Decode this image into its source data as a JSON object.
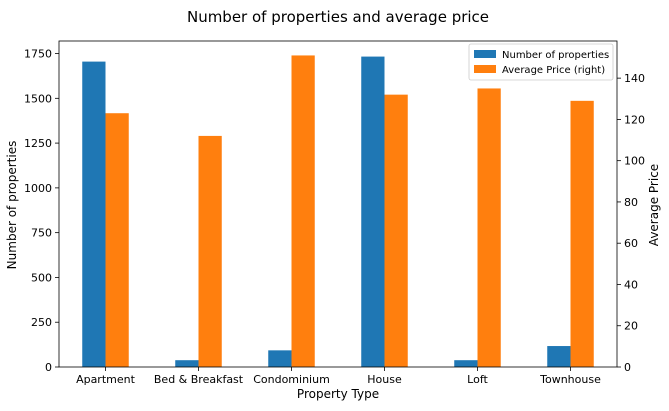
{
  "chart_data": {
    "type": "bar",
    "title": "Number of properties and average price",
    "xlabel": "Property Type",
    "ylabel_left": "Number of properties",
    "ylabel_right": "Average Price",
    "categories": [
      "Apartment",
      "Bed & Breakfast",
      "Condominium",
      "House",
      "Loft",
      "Townhouse"
    ],
    "series": [
      {
        "name": "Number of properties",
        "axis": "left",
        "color": "#1f77b4",
        "values": [
          1705,
          38,
          93,
          1733,
          38,
          117
        ]
      },
      {
        "name": "Average Price (right)",
        "axis": "right",
        "color": "#ff7f0e",
        "values": [
          123,
          112,
          151,
          132,
          135,
          129
        ]
      }
    ],
    "ylim_left": [
      0,
      1820
    ],
    "ylim_right": [
      0,
      158
    ],
    "yticks_left": [
      0,
      250,
      500,
      750,
      1000,
      1250,
      1500,
      1750
    ],
    "yticks_right": [
      0,
      20,
      40,
      60,
      80,
      100,
      120,
      140
    ],
    "legend_placement": "top-right",
    "grid": false
  }
}
